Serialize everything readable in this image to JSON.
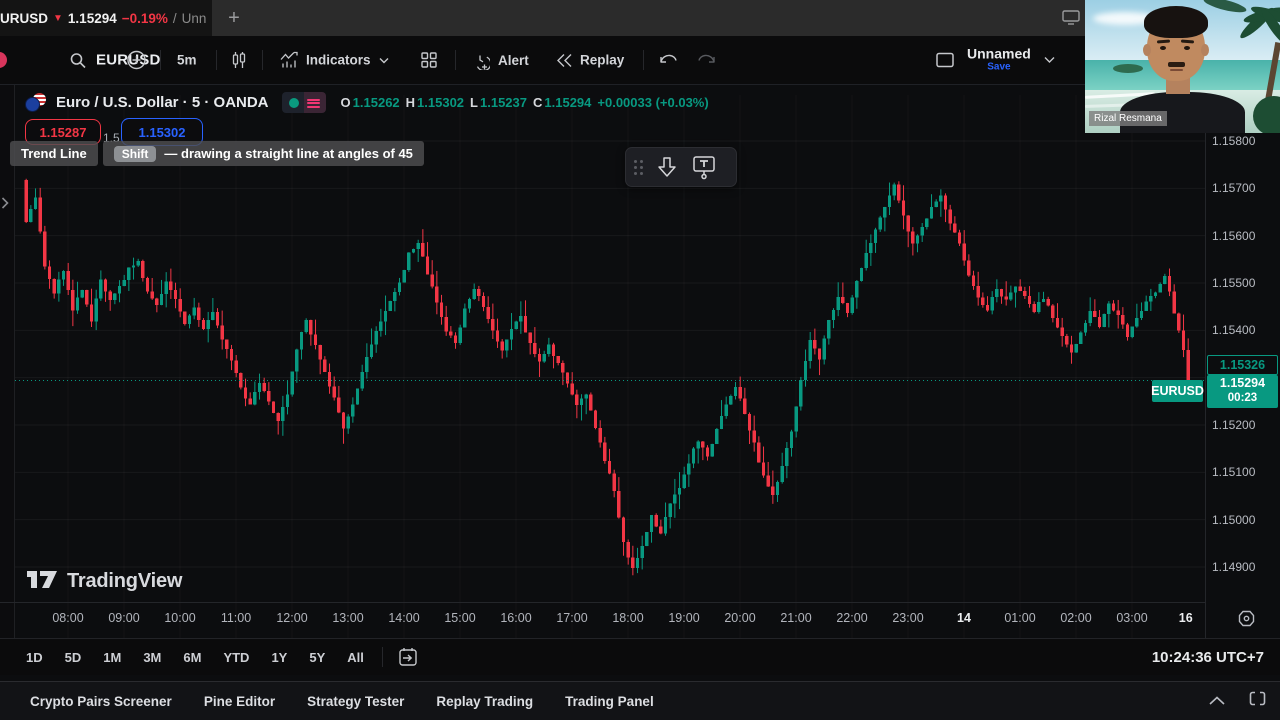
{
  "browser_tab": {
    "symbol": "EURUSD",
    "arrow": "▼",
    "price": "1.15294",
    "change": "−0.19%",
    "separator": "/",
    "suffix": "Unn",
    "new_tab": "+"
  },
  "toolbar": {
    "symbol": "EURUSD",
    "interval": "5m",
    "indicators": "Indicators",
    "alert": "Alert",
    "replay": "Replay",
    "layout_name": "Unnamed",
    "save": "Save"
  },
  "chart_header": {
    "title": "Euro / U.S. Dollar · 5 · OANDA",
    "o_label": "O",
    "o": "1.15262",
    "h_label": "H",
    "h": "1.15302",
    "l_label": "L",
    "l": "1.15237",
    "c_label": "C",
    "c": "1.15294",
    "change": "+0.00033 (+0.03%)"
  },
  "price_inputs": {
    "first": "1.15287",
    "mid": "1.5",
    "second": "1.15302"
  },
  "drawing_tooltip": {
    "tool": "Trend Line",
    "key": "Shift",
    "hint": "— drawing a straight line at angles of 45"
  },
  "price_label": {
    "symbol": "EURUSD",
    "upper": "1.15326",
    "price": "1.15294",
    "countdown": "00:23"
  },
  "watermark": "TradingView",
  "bottom_bar": {
    "ranges": [
      "1D",
      "5D",
      "1M",
      "3M",
      "6M",
      "YTD",
      "1Y",
      "5Y",
      "All"
    ],
    "clock": "10:24:36 UTC+7"
  },
  "footer": {
    "items": [
      "Crypto Pairs Screener",
      "Pine Editor",
      "Strategy Tester",
      "Replay Trading",
      "Trading Panel"
    ]
  },
  "webcam": {
    "name": "Rizal Resmana"
  },
  "chart_data": {
    "type": "candlestick",
    "symbol": "EURUSD",
    "exchange": "OANDA",
    "interval": "5",
    "title": "Euro / U.S. Dollar · 5 · OANDA",
    "ohlc": {
      "open": 1.15262,
      "high": 1.15302,
      "low": 1.15237,
      "close": 1.15294
    },
    "change_abs": 0.00033,
    "change_pct": 0.03,
    "last_price": 1.15294,
    "upper_tag": 1.15326,
    "countdown": "00:23",
    "colors": {
      "up": "#089981",
      "down": "#f23645",
      "last_line": "#089981"
    },
    "price_axis_ticks": [
      [
        1.158,
        "1.15800"
      ],
      [
        1.157,
        "1.15700"
      ],
      [
        1.156,
        "1.15600"
      ],
      [
        1.155,
        "1.15500"
      ],
      [
        1.154,
        "1.15400"
      ],
      [
        1.152,
        "1.15200"
      ],
      [
        1.151,
        "1.15100"
      ],
      [
        1.15,
        "1.15000"
      ],
      [
        1.149,
        "1.14900"
      ]
    ],
    "time_axis_ticks": [
      [
        8,
        "08:00",
        false
      ],
      [
        9,
        "09:00",
        false
      ],
      [
        10,
        "10:00",
        false
      ],
      [
        11,
        "11:00",
        false
      ],
      [
        12,
        "12:00",
        false
      ],
      [
        13,
        "13:00",
        false
      ],
      [
        14,
        "14:00",
        false
      ],
      [
        15,
        "15:00",
        false
      ],
      [
        16,
        "16:00",
        false
      ],
      [
        17,
        "17:00",
        false
      ],
      [
        18,
        "18:00",
        false
      ],
      [
        19,
        "19:00",
        false
      ],
      [
        20,
        "20:00",
        false
      ],
      [
        21,
        "21:00",
        false
      ],
      [
        22,
        "22:00",
        false
      ],
      [
        23,
        "23:00",
        false
      ],
      [
        24,
        "14",
        true
      ],
      [
        25,
        "01:00",
        false
      ],
      [
        26,
        "02:00",
        false
      ],
      [
        27,
        "03:00",
        false
      ],
      [
        27.96,
        "16",
        true
      ]
    ],
    "price_path": [
      [
        7.17,
        1.1572
      ],
      [
        7.25,
        1.1563
      ],
      [
        7.42,
        1.1568
      ],
      [
        7.58,
        1.1554
      ],
      [
        7.75,
        1.1548
      ],
      [
        7.92,
        1.1553
      ],
      [
        8.08,
        1.1544
      ],
      [
        8.25,
        1.1549
      ],
      [
        8.42,
        1.1542
      ],
      [
        8.58,
        1.1551
      ],
      [
        8.75,
        1.1546
      ],
      [
        8.92,
        1.1549
      ],
      [
        9.08,
        1.1553
      ],
      [
        9.25,
        1.1555
      ],
      [
        9.42,
        1.1548
      ],
      [
        9.58,
        1.1545
      ],
      [
        9.75,
        1.155
      ],
      [
        9.92,
        1.1547
      ],
      [
        10.08,
        1.1541
      ],
      [
        10.25,
        1.1545
      ],
      [
        10.42,
        1.154
      ],
      [
        10.58,
        1.1544
      ],
      [
        10.75,
        1.1538
      ],
      [
        10.92,
        1.1534
      ],
      [
        11.08,
        1.1528
      ],
      [
        11.25,
        1.1524
      ],
      [
        11.42,
        1.1529
      ],
      [
        11.58,
        1.1525
      ],
      [
        11.75,
        1.1521
      ],
      [
        11.92,
        1.1526
      ],
      [
        12.08,
        1.1536
      ],
      [
        12.25,
        1.1542
      ],
      [
        12.42,
        1.1537
      ],
      [
        12.58,
        1.1531
      ],
      [
        12.75,
        1.1526
      ],
      [
        12.92,
        1.1519
      ],
      [
        13.08,
        1.1524
      ],
      [
        13.25,
        1.1531
      ],
      [
        13.42,
        1.1537
      ],
      [
        13.58,
        1.1542
      ],
      [
        13.75,
        1.1546
      ],
      [
        13.92,
        1.155
      ],
      [
        14.08,
        1.1556
      ],
      [
        14.25,
        1.1559
      ],
      [
        14.42,
        1.1552
      ],
      [
        14.58,
        1.1546
      ],
      [
        14.75,
        1.154
      ],
      [
        14.92,
        1.1537
      ],
      [
        15.08,
        1.1544
      ],
      [
        15.25,
        1.1549
      ],
      [
        15.42,
        1.1545
      ],
      [
        15.58,
        1.154
      ],
      [
        15.75,
        1.1536
      ],
      [
        15.92,
        1.154
      ],
      [
        16.08,
        1.1543
      ],
      [
        16.25,
        1.1537
      ],
      [
        16.42,
        1.1533
      ],
      [
        16.58,
        1.1537
      ],
      [
        16.75,
        1.1533
      ],
      [
        16.92,
        1.1529
      ],
      [
        17.08,
        1.1524
      ],
      [
        17.25,
        1.1527
      ],
      [
        17.42,
        1.1519
      ],
      [
        17.58,
        1.1513
      ],
      [
        17.75,
        1.1506
      ],
      [
        17.92,
        1.1495
      ],
      [
        18.08,
        1.149
      ],
      [
        18.25,
        1.1494
      ],
      [
        18.42,
        1.1501
      ],
      [
        18.58,
        1.1497
      ],
      [
        18.75,
        1.1503
      ],
      [
        18.92,
        1.1507
      ],
      [
        19.08,
        1.1512
      ],
      [
        19.25,
        1.1517
      ],
      [
        19.42,
        1.1513
      ],
      [
        19.58,
        1.1519
      ],
      [
        19.75,
        1.1524
      ],
      [
        19.92,
        1.1528
      ],
      [
        20.08,
        1.1523
      ],
      [
        20.25,
        1.1516
      ],
      [
        20.42,
        1.1509
      ],
      [
        20.58,
        1.1505
      ],
      [
        20.75,
        1.1511
      ],
      [
        20.92,
        1.1519
      ],
      [
        21.08,
        1.1529
      ],
      [
        21.25,
        1.1538
      ],
      [
        21.42,
        1.1534
      ],
      [
        21.58,
        1.1542
      ],
      [
        21.75,
        1.1547
      ],
      [
        21.92,
        1.1544
      ],
      [
        22.08,
        1.155
      ],
      [
        22.25,
        1.1556
      ],
      [
        22.42,
        1.1561
      ],
      [
        22.58,
        1.1566
      ],
      [
        22.75,
        1.1571
      ],
      [
        22.92,
        1.1564
      ],
      [
        23.08,
        1.1558
      ],
      [
        23.25,
        1.1562
      ],
      [
        23.42,
        1.1566
      ],
      [
        23.58,
        1.1569
      ],
      [
        23.75,
        1.1563
      ],
      [
        23.92,
        1.1558
      ],
      [
        24.08,
        1.1552
      ],
      [
        24.25,
        1.1547
      ],
      [
        24.42,
        1.1544
      ],
      [
        24.58,
        1.1549
      ],
      [
        24.75,
        1.1546
      ],
      [
        24.92,
        1.1549
      ],
      [
        25.08,
        1.1547
      ],
      [
        25.25,
        1.1544
      ],
      [
        25.42,
        1.1547
      ],
      [
        25.58,
        1.1543
      ],
      [
        25.75,
        1.1539
      ],
      [
        25.92,
        1.1535
      ],
      [
        26.08,
        1.1539
      ],
      [
        26.25,
        1.1544
      ],
      [
        26.42,
        1.1541
      ],
      [
        26.58,
        1.1546
      ],
      [
        26.75,
        1.1543
      ],
      [
        26.92,
        1.1539
      ],
      [
        27.08,
        1.1542
      ],
      [
        27.25,
        1.1546
      ],
      [
        27.42,
        1.1548
      ],
      [
        27.58,
        1.1552
      ],
      [
        27.75,
        1.1544
      ],
      [
        27.92,
        1.1536
      ],
      [
        28.05,
        1.15294
      ]
    ]
  }
}
